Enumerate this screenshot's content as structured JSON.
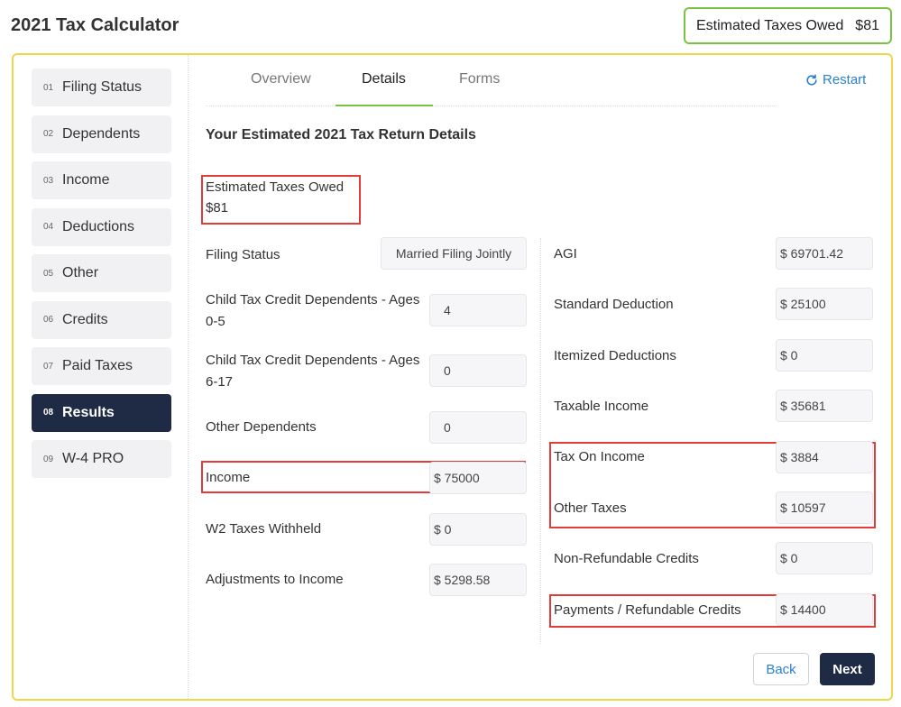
{
  "app": {
    "title": "2021 Tax Calculator"
  },
  "header_badge": {
    "label": "Estimated Taxes Owed",
    "value": "$81"
  },
  "sidebar": {
    "items": [
      {
        "num": "01",
        "label": "Filing Status"
      },
      {
        "num": "02",
        "label": "Dependents"
      },
      {
        "num": "03",
        "label": "Income"
      },
      {
        "num": "04",
        "label": "Deductions"
      },
      {
        "num": "05",
        "label": "Other"
      },
      {
        "num": "06",
        "label": "Credits"
      },
      {
        "num": "07",
        "label": "Paid Taxes"
      },
      {
        "num": "08",
        "label": "Results"
      },
      {
        "num": "09",
        "label": "W-4 PRO"
      }
    ],
    "active": "Results"
  },
  "tabs": [
    {
      "label": "Overview"
    },
    {
      "label": "Details"
    },
    {
      "label": "Forms"
    }
  ],
  "restart_label": "Restart",
  "section_title": "Your Estimated 2021 Tax Return Details",
  "estimated": {
    "label": "Estimated Taxes Owed",
    "value": "$81"
  },
  "left_fields": {
    "filing_status": {
      "label": "Filing Status",
      "value": "Married Filing Jointly"
    },
    "ctc_0_5": {
      "label_line1": "Child Tax Credit Dependents - Ages",
      "label_line2": "0-5",
      "value": "4"
    },
    "ctc_6_17": {
      "label_line1": "Child Tax Credit Dependents - Ages",
      "label_line2": "6-17",
      "value": "0"
    },
    "other_dependents": {
      "label": "Other Dependents",
      "value": "0"
    },
    "income": {
      "label": "Income",
      "value": "$ 75000"
    },
    "w2_withheld": {
      "label": "W2 Taxes Withheld",
      "value": "$ 0"
    },
    "adjustments": {
      "label": "Adjustments to Income",
      "value": "$ 5298.58"
    }
  },
  "right_fields": {
    "agi": {
      "label": "AGI",
      "value": "$ 69701.42"
    },
    "standard_deduction": {
      "label": "Standard Deduction",
      "value": "$ 25100"
    },
    "itemized_deductions": {
      "label": "Itemized Deductions",
      "value": "$ 0"
    },
    "taxable_income": {
      "label": "Taxable Income",
      "value": "$ 35681"
    },
    "tax_on_income": {
      "label": "Tax On Income",
      "value": "$ 3884"
    },
    "other_taxes": {
      "label": "Other Taxes",
      "value": "$ 10597"
    },
    "non_refundable": {
      "label": "Non-Refundable Credits",
      "value": "$ 0"
    },
    "payments": {
      "label": "Payments / Refundable Credits",
      "value": "$ 14400"
    }
  },
  "buttons": {
    "back": "Back",
    "next": "Next"
  },
  "colors": {
    "accent_green": "#7cc242",
    "panel_border": "#f0d64a",
    "navy": "#1f2a44",
    "link_blue": "#2a7fd4",
    "highlight_red": "#e03c3c"
  }
}
